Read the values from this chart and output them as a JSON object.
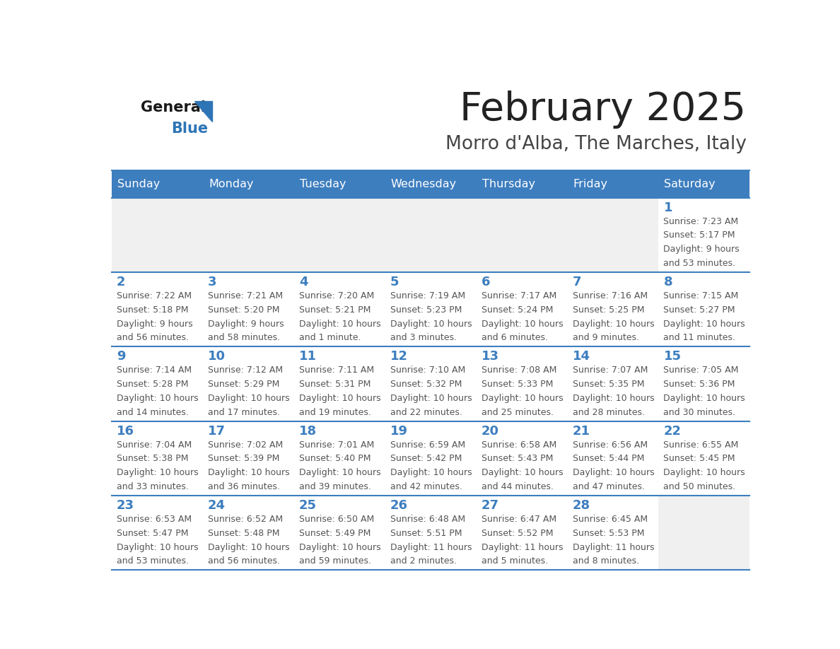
{
  "title": "February 2025",
  "subtitle": "Morro d'Alba, The Marches, Italy",
  "days_of_week": [
    "Sunday",
    "Monday",
    "Tuesday",
    "Wednesday",
    "Thursday",
    "Friday",
    "Saturday"
  ],
  "header_bg_color": "#3d7ebf",
  "header_text_color": "#ffffff",
  "cell_bg_color": "#ffffff",
  "cell_bg_empty": "#f0f0f0",
  "cell_border_color": "#3d7ebf",
  "day_number_color": "#3d7ebf",
  "info_text_color": "#555555",
  "background_color": "#ffffff",
  "title_color": "#222222",
  "subtitle_color": "#444444",
  "blue_color": "#2E75B6",
  "logo_general_color": "#1a1a1a",
  "calendar_data": [
    [
      null,
      null,
      null,
      null,
      null,
      null,
      {
        "day": 1,
        "sunrise": "7:23 AM",
        "sunset": "5:17 PM",
        "daylight": "9 hours and 53 minutes."
      }
    ],
    [
      {
        "day": 2,
        "sunrise": "7:22 AM",
        "sunset": "5:18 PM",
        "daylight": "9 hours and 56 minutes."
      },
      {
        "day": 3,
        "sunrise": "7:21 AM",
        "sunset": "5:20 PM",
        "daylight": "9 hours and 58 minutes."
      },
      {
        "day": 4,
        "sunrise": "7:20 AM",
        "sunset": "5:21 PM",
        "daylight": "10 hours and 1 minute."
      },
      {
        "day": 5,
        "sunrise": "7:19 AM",
        "sunset": "5:23 PM",
        "daylight": "10 hours and 3 minutes."
      },
      {
        "day": 6,
        "sunrise": "7:17 AM",
        "sunset": "5:24 PM",
        "daylight": "10 hours and 6 minutes."
      },
      {
        "day": 7,
        "sunrise": "7:16 AM",
        "sunset": "5:25 PM",
        "daylight": "10 hours and 9 minutes."
      },
      {
        "day": 8,
        "sunrise": "7:15 AM",
        "sunset": "5:27 PM",
        "daylight": "10 hours and 11 minutes."
      }
    ],
    [
      {
        "day": 9,
        "sunrise": "7:14 AM",
        "sunset": "5:28 PM",
        "daylight": "10 hours and 14 minutes."
      },
      {
        "day": 10,
        "sunrise": "7:12 AM",
        "sunset": "5:29 PM",
        "daylight": "10 hours and 17 minutes."
      },
      {
        "day": 11,
        "sunrise": "7:11 AM",
        "sunset": "5:31 PM",
        "daylight": "10 hours and 19 minutes."
      },
      {
        "day": 12,
        "sunrise": "7:10 AM",
        "sunset": "5:32 PM",
        "daylight": "10 hours and 22 minutes."
      },
      {
        "day": 13,
        "sunrise": "7:08 AM",
        "sunset": "5:33 PM",
        "daylight": "10 hours and 25 minutes."
      },
      {
        "day": 14,
        "sunrise": "7:07 AM",
        "sunset": "5:35 PM",
        "daylight": "10 hours and 28 minutes."
      },
      {
        "day": 15,
        "sunrise": "7:05 AM",
        "sunset": "5:36 PM",
        "daylight": "10 hours and 30 minutes."
      }
    ],
    [
      {
        "day": 16,
        "sunrise": "7:04 AM",
        "sunset": "5:38 PM",
        "daylight": "10 hours and 33 minutes."
      },
      {
        "day": 17,
        "sunrise": "7:02 AM",
        "sunset": "5:39 PM",
        "daylight": "10 hours and 36 minutes."
      },
      {
        "day": 18,
        "sunrise": "7:01 AM",
        "sunset": "5:40 PM",
        "daylight": "10 hours and 39 minutes."
      },
      {
        "day": 19,
        "sunrise": "6:59 AM",
        "sunset": "5:42 PM",
        "daylight": "10 hours and 42 minutes."
      },
      {
        "day": 20,
        "sunrise": "6:58 AM",
        "sunset": "5:43 PM",
        "daylight": "10 hours and 44 minutes."
      },
      {
        "day": 21,
        "sunrise": "6:56 AM",
        "sunset": "5:44 PM",
        "daylight": "10 hours and 47 minutes."
      },
      {
        "day": 22,
        "sunrise": "6:55 AM",
        "sunset": "5:45 PM",
        "daylight": "10 hours and 50 minutes."
      }
    ],
    [
      {
        "day": 23,
        "sunrise": "6:53 AM",
        "sunset": "5:47 PM",
        "daylight": "10 hours and 53 minutes."
      },
      {
        "day": 24,
        "sunrise": "6:52 AM",
        "sunset": "5:48 PM",
        "daylight": "10 hours and 56 minutes."
      },
      {
        "day": 25,
        "sunrise": "6:50 AM",
        "sunset": "5:49 PM",
        "daylight": "10 hours and 59 minutes."
      },
      {
        "day": 26,
        "sunrise": "6:48 AM",
        "sunset": "5:51 PM",
        "daylight": "11 hours and 2 minutes."
      },
      {
        "day": 27,
        "sunrise": "6:47 AM",
        "sunset": "5:52 PM",
        "daylight": "11 hours and 5 minutes."
      },
      {
        "day": 28,
        "sunrise": "6:45 AM",
        "sunset": "5:53 PM",
        "daylight": "11 hours and 8 minutes."
      },
      null
    ]
  ],
  "figsize": [
    11.88,
    9.18
  ],
  "dpi": 100
}
